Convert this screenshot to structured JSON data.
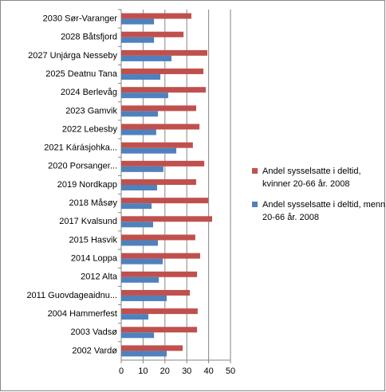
{
  "chart_data": {
    "type": "hbar",
    "categories": [
      "2030 Sør-Varanger",
      "2028 Båtsfjord",
      "2027 Unjárga Nesseby",
      "2025 Deatnu Tana",
      "2024 Berlevåg",
      "2023 Gamvik",
      "2022 Lebesby",
      "2021 Kárásjohka...",
      "2020 Porsanger...",
      "2019 Nordkapp",
      "2018 Måsøy",
      "2017 Kvalsund",
      "2015 Hasvik",
      "2014 Loppa",
      "2012 Alta",
      "2011 Guovdageaidnu...",
      "2004 Hammerfest",
      "2003 Vadsø",
      "2002 Vardø"
    ],
    "series": [
      {
        "name": "Andel sysselsatte i deltid, kvinner 20-66 år. 2008",
        "color": "#c0504d",
        "values": [
          32.1,
          28.5,
          39.4,
          37.6,
          38.7,
          34.3,
          35.8,
          32.8,
          38,
          34.3,
          39.8,
          41.6,
          33.9,
          36.1,
          34.7,
          31.4,
          35,
          34.7,
          28.1
        ]
      },
      {
        "name": "Andel sysselsatte i deltid, menn 20-66 år. 2008",
        "color": "#4f81bd",
        "values": [
          15,
          15,
          23,
          17.9,
          21.5,
          16.8,
          16,
          25.2,
          19.3,
          16.4,
          13.9,
          14.6,
          16.8,
          19,
          17.2,
          20.8,
          12.4,
          15,
          20.8
        ]
      }
    ],
    "xlim": [
      0,
      50
    ],
    "xticks": [
      0,
      10,
      20,
      30,
      40,
      50
    ],
    "grid": true
  }
}
